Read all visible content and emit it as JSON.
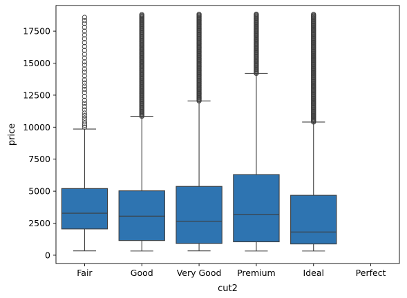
{
  "chart_data": {
    "type": "box",
    "xlabel": "cut2",
    "ylabel": "price",
    "categories": [
      "Fair",
      "Good",
      "Very Good",
      "Premium",
      "Ideal",
      "Perfect"
    ],
    "ylim": [
      -650,
      19500
    ],
    "yticks": [
      0,
      2500,
      5000,
      7500,
      10000,
      12500,
      15000,
      17500
    ],
    "ytick_labels": [
      "0",
      "2500",
      "5000",
      "7500",
      "10000",
      "12500",
      "15000",
      "17500"
    ],
    "grid": false,
    "box_color": "#2e74b1",
    "line_color": "#3d3d3d",
    "boxes": [
      {
        "category": "Fair",
        "whisker_low": 337,
        "q1": 2050,
        "median": 3282,
        "q3": 5206,
        "whisker_high": 9850,
        "outliers": [
          10000,
          10150,
          10300,
          10500,
          10700,
          10900,
          11100,
          11350,
          11600,
          11850,
          12100,
          12400,
          12700,
          12950,
          13200,
          13450,
          13700,
          14000,
          14300,
          14550,
          14850,
          15100,
          15400,
          15700,
          16000,
          16300,
          16600,
          16900,
          17200,
          17500,
          17800,
          18100,
          18331,
          18574
        ]
      },
      {
        "category": "Good",
        "whisker_low": 327,
        "q1": 1145,
        "median": 3050,
        "q3": 5028,
        "whisker_high": 10850,
        "outliers_range": [
          10850,
          18788
        ]
      },
      {
        "category": "Very Good",
        "whisker_low": 336,
        "q1": 912,
        "median": 2648,
        "q3": 5373,
        "whisker_high": 12050,
        "outliers_range": [
          12050,
          18818
        ]
      },
      {
        "category": "Premium",
        "whisker_low": 326,
        "q1": 1046,
        "median": 3185,
        "q3": 6296,
        "whisker_high": 14200,
        "outliers_range": [
          14200,
          18823
        ]
      },
      {
        "category": "Ideal",
        "whisker_low": 326,
        "q1": 878,
        "median": 1810,
        "q3": 4678,
        "whisker_high": 10400,
        "outliers_range": [
          10400,
          18806
        ]
      },
      {
        "category": "Perfect",
        "empty": true
      }
    ]
  }
}
